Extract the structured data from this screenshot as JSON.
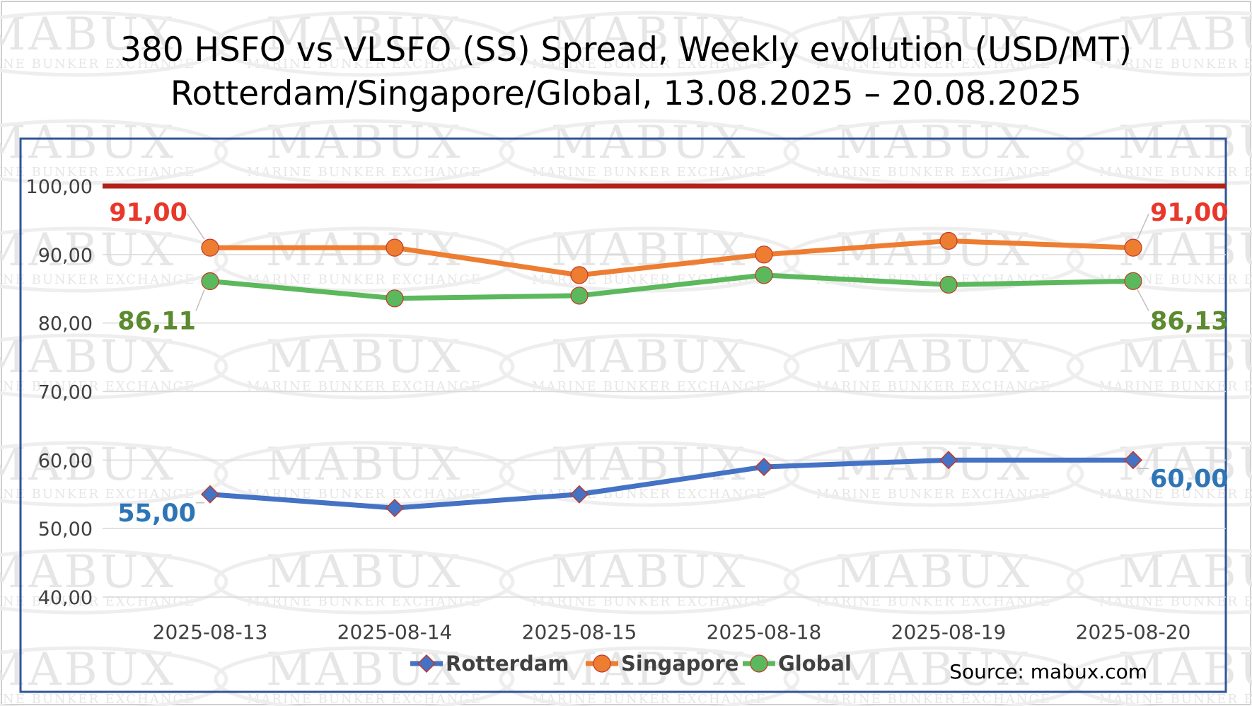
{
  "chart_data": {
    "type": "line",
    "title": "380 HSFO vs VLSFO (SS) Spread, Weekly evolution (USD/MT)",
    "subtitle": "Rotterdam/Singapore/Global, 13.08.2025 – 20.08.2025",
    "categories": [
      "2025-08-13",
      "2025-08-14",
      "2025-08-15",
      "2025-08-18",
      "2025-08-19",
      "2025-08-20"
    ],
    "ylim": [
      40,
      100
    ],
    "yticks": [
      40,
      50,
      60,
      70,
      80,
      90,
      100
    ],
    "ytick_labels": [
      "40,00",
      "50,00",
      "60,00",
      "70,00",
      "80,00",
      "90,00",
      "100,00"
    ],
    "grid": true,
    "reference_line": {
      "value": 100,
      "color": "#b0231a"
    },
    "series": [
      {
        "name": "Rotterdam",
        "color": "#4472c4",
        "marker": "diamond",
        "values": [
          55,
          53,
          55,
          59,
          60,
          60
        ],
        "labels": [
          {
            "index": 0,
            "text": "55,00"
          },
          {
            "index": 5,
            "text": "60,00"
          }
        ],
        "label_color": "#2e75b6"
      },
      {
        "name": "Singapore",
        "color": "#ed7d31",
        "marker": "circle",
        "values": [
          91,
          91,
          87,
          90,
          92,
          91
        ],
        "labels": [
          {
            "index": 0,
            "text": "91,00"
          },
          {
            "index": 5,
            "text": "91,00"
          }
        ],
        "label_color": "#e8382a"
      },
      {
        "name": "Global",
        "color": "#5cb85c",
        "marker": "circle",
        "values": [
          86.11,
          83.6,
          84,
          87,
          85.6,
          86.13
        ],
        "labels": [
          {
            "index": 0,
            "text": "86,11"
          },
          {
            "index": 5,
            "text": "86,13"
          }
        ],
        "label_color": "#5b8a2f"
      }
    ],
    "legend": {
      "position": "bottom-center"
    },
    "source": "Source: mabux.com"
  },
  "watermark": {
    "brand": "MABUX",
    "tagline": "MARINE BUNKER EXCHANGE"
  }
}
